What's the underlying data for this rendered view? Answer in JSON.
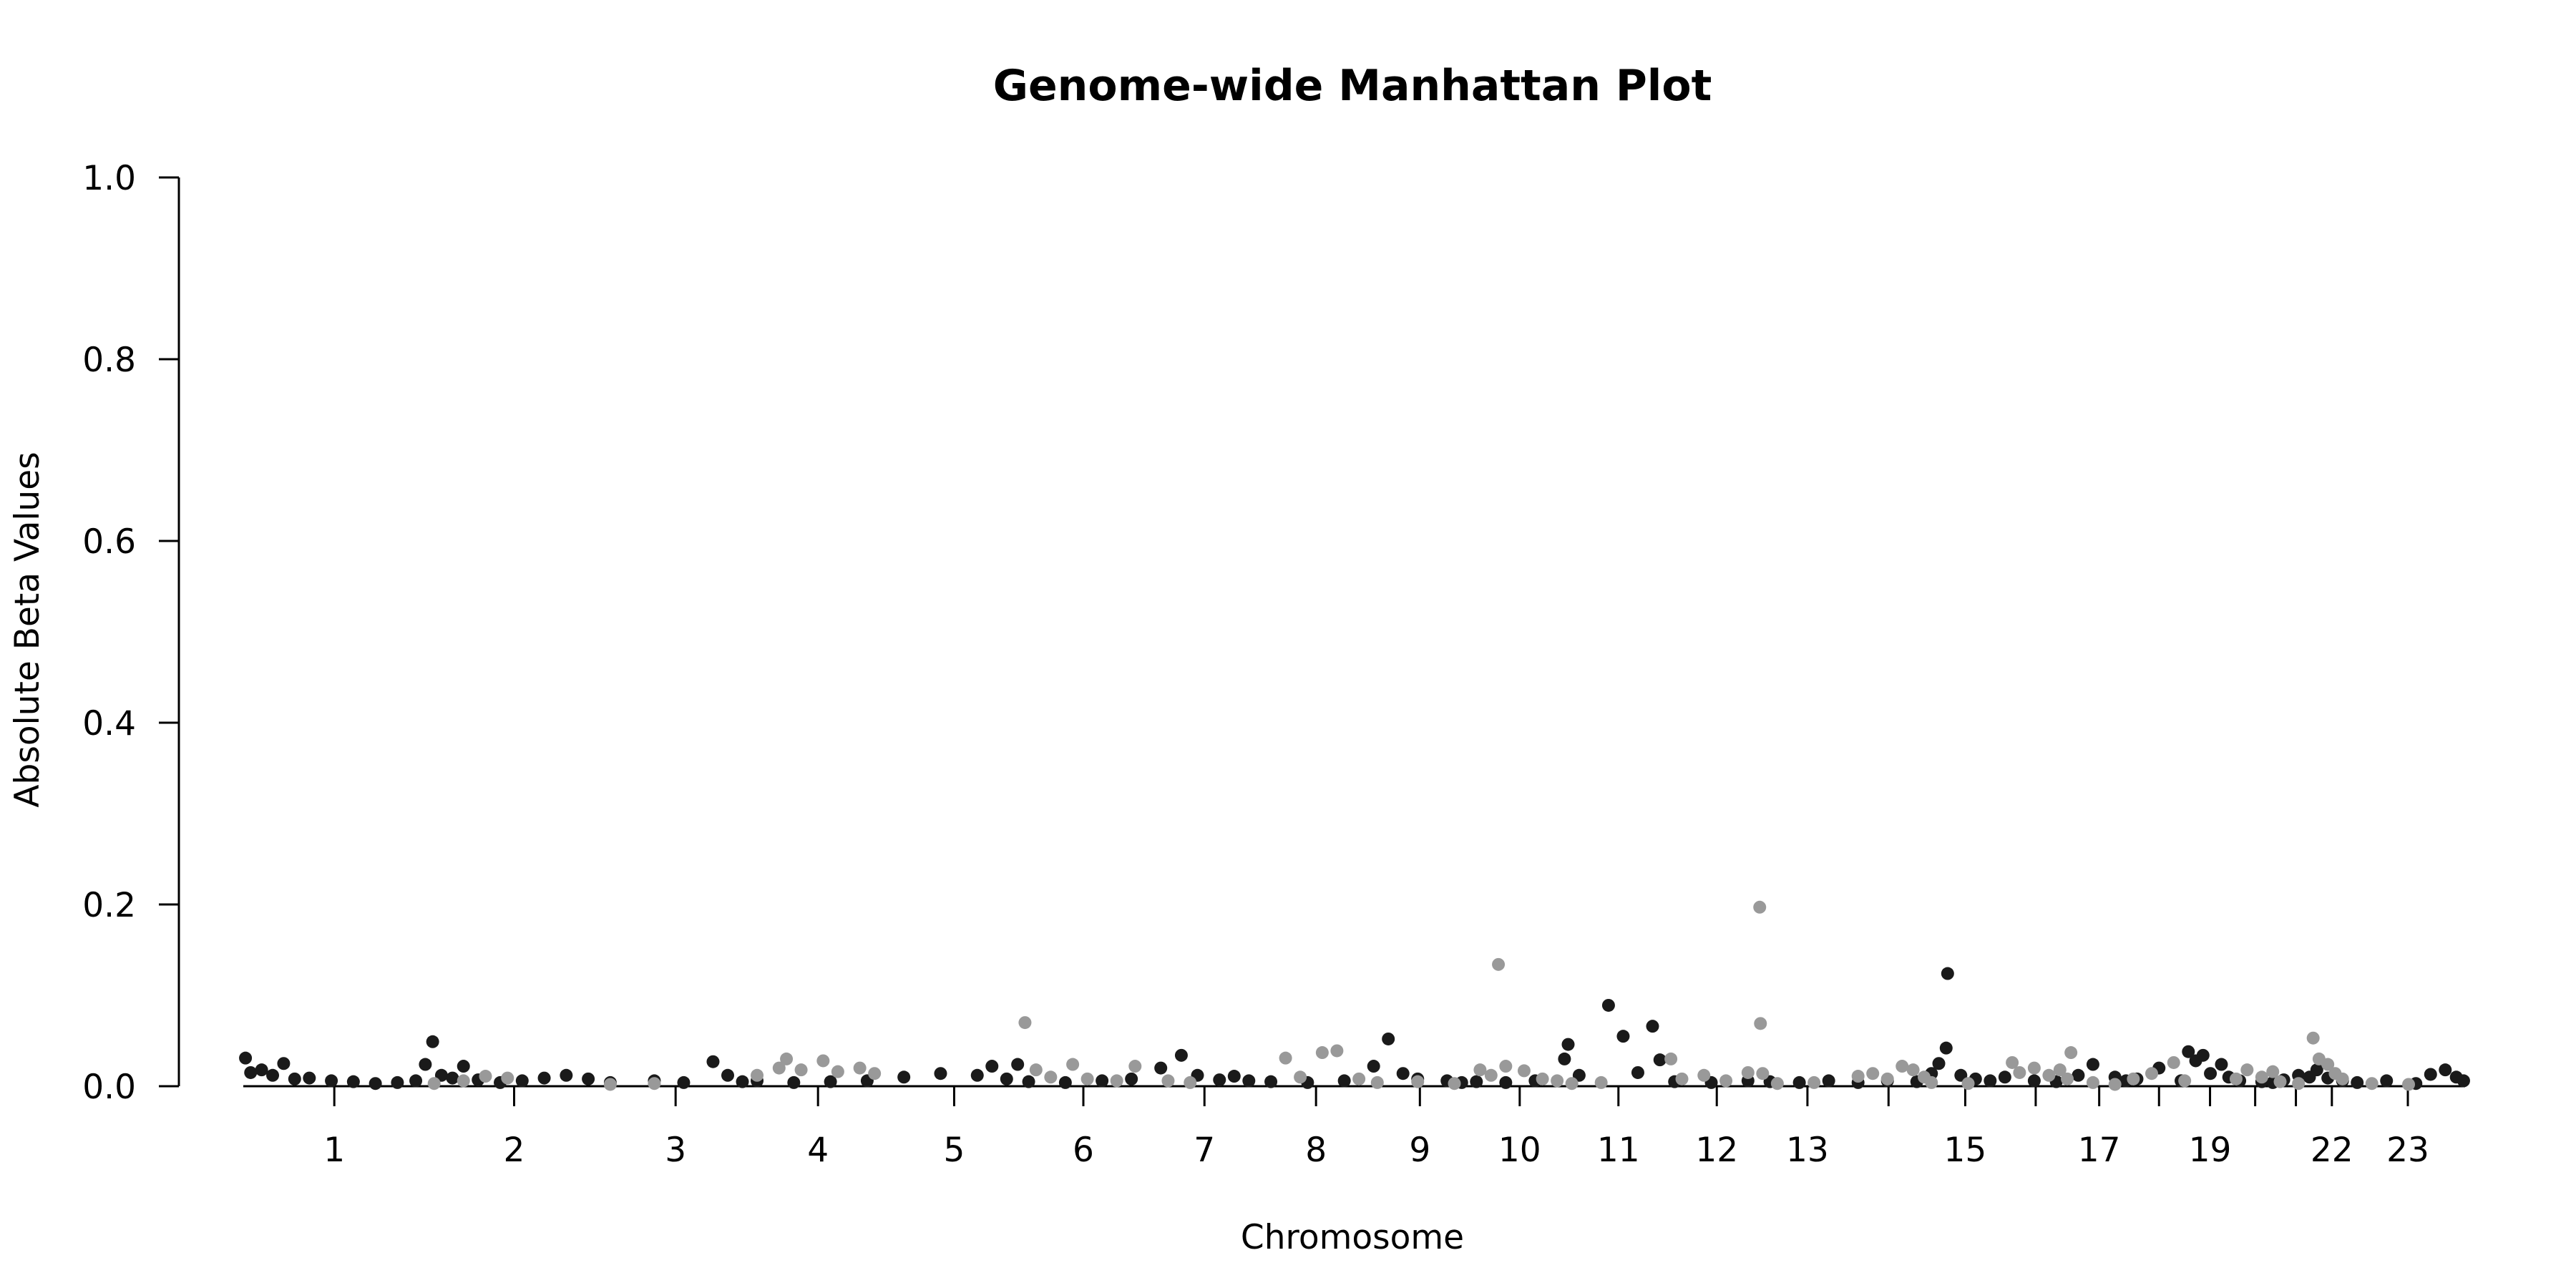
{
  "chart_data": {
    "type": "scatter",
    "title": "Genome-wide Manhattan Plot",
    "xlabel": "Chromosome",
    "ylabel": "Absolute Beta Values",
    "ylim": [
      0,
      1.0
    ],
    "yticks": [
      "0.0",
      "0.2",
      "0.4",
      "0.6",
      "0.8",
      "1.0"
    ],
    "grid": false,
    "legend": "none",
    "colors": {
      "dark": "#1a1a1a",
      "light": "#999999",
      "axis": "#000000"
    },
    "chromosomes": [
      {
        "label": "1",
        "start": 0,
        "end": 248
      },
      {
        "label": "2",
        "start": 248,
        "end": 490
      },
      {
        "label": "3",
        "start": 490,
        "end": 688
      },
      {
        "label": "4",
        "start": 688,
        "end": 878
      },
      {
        "label": "5",
        "start": 878,
        "end": 1059
      },
      {
        "label": "6",
        "start": 1059,
        "end": 1230
      },
      {
        "label": "7",
        "start": 1230,
        "end": 1389
      },
      {
        "label": "8",
        "start": 1389,
        "end": 1534
      },
      {
        "label": "9",
        "start": 1534,
        "end": 1672
      },
      {
        "label": "10",
        "start": 1672,
        "end": 1806
      },
      {
        "label": "11",
        "start": 1806,
        "end": 1941
      },
      {
        "label": "12",
        "start": 1941,
        "end": 2074
      },
      {
        "label": "13",
        "start": 2074,
        "end": 2188
      },
      {
        "label": "",
        "start": 2188,
        "end": 2295
      },
      {
        "label": "15",
        "start": 2295,
        "end": 2397
      },
      {
        "label": "",
        "start": 2397,
        "end": 2487
      },
      {
        "label": "17",
        "start": 2487,
        "end": 2570
      },
      {
        "label": "",
        "start": 2570,
        "end": 2650
      },
      {
        "label": "19",
        "start": 2650,
        "end": 2709
      },
      {
        "label": "",
        "start": 2709,
        "end": 2773
      },
      {
        "label": "",
        "start": 2773,
        "end": 2820
      },
      {
        "label": "22",
        "start": 2820,
        "end": 2871
      },
      {
        "label": "23",
        "start": 2871,
        "end": 3027
      }
    ],
    "series": [
      {
        "color": "dark",
        "points": [
          [
            3,
            0.031
          ],
          [
            10,
            0.015
          ],
          [
            25,
            0.018
          ],
          [
            40,
            0.012
          ],
          [
            55,
            0.025
          ],
          [
            70,
            0.008
          ],
          [
            90,
            0.009
          ],
          [
            120,
            0.006
          ],
          [
            150,
            0.005
          ],
          [
            180,
            0.003
          ],
          [
            210,
            0.004
          ],
          [
            235,
            0.006
          ],
          [
            248,
            0.024
          ],
          [
            258,
            0.049
          ],
          [
            270,
            0.012
          ],
          [
            285,
            0.009
          ],
          [
            300,
            0.022
          ],
          [
            320,
            0.007
          ],
          [
            350,
            0.004
          ],
          [
            380,
            0.006
          ],
          [
            410,
            0.009
          ],
          [
            440,
            0.012
          ],
          [
            470,
            0.008
          ],
          [
            500,
            0.004
          ],
          [
            560,
            0.006
          ],
          [
            600,
            0.004
          ],
          [
            640,
            0.027
          ],
          [
            660,
            0.012
          ],
          [
            680,
            0.005
          ],
          [
            700,
            0.006
          ],
          [
            750,
            0.004
          ],
          [
            800,
            0.005
          ],
          [
            850,
            0.006
          ],
          [
            900,
            0.01
          ],
          [
            950,
            0.014
          ],
          [
            1000,
            0.012
          ],
          [
            1020,
            0.022
          ],
          [
            1040,
            0.008
          ],
          [
            1055,
            0.024
          ],
          [
            1070,
            0.005
          ],
          [
            1120,
            0.004
          ],
          [
            1170,
            0.006
          ],
          [
            1210,
            0.008
          ],
          [
            1250,
            0.02
          ],
          [
            1278,
            0.034
          ],
          [
            1300,
            0.012
          ],
          [
            1330,
            0.007
          ],
          [
            1350,
            0.011
          ],
          [
            1370,
            0.006
          ],
          [
            1400,
            0.005
          ],
          [
            1450,
            0.004
          ],
          [
            1500,
            0.006
          ],
          [
            1540,
            0.022
          ],
          [
            1560,
            0.052
          ],
          [
            1580,
            0.014
          ],
          [
            1600,
            0.008
          ],
          [
            1640,
            0.006
          ],
          [
            1660,
            0.004
          ],
          [
            1680,
            0.005
          ],
          [
            1720,
            0.004
          ],
          [
            1760,
            0.006
          ],
          [
            1800,
            0.03
          ],
          [
            1805,
            0.046
          ],
          [
            1820,
            0.012
          ],
          [
            1860,
            0.089
          ],
          [
            1880,
            0.055
          ],
          [
            1900,
            0.015
          ],
          [
            1920,
            0.066
          ],
          [
            1930,
            0.029
          ],
          [
            1950,
            0.005
          ],
          [
            2000,
            0.004
          ],
          [
            2050,
            0.006
          ],
          [
            2080,
            0.005
          ],
          [
            2120,
            0.004
          ],
          [
            2160,
            0.006
          ],
          [
            2200,
            0.004
          ],
          [
            2240,
            0.006
          ],
          [
            2280,
            0.005
          ],
          [
            2300,
            0.014
          ],
          [
            2310,
            0.025
          ],
          [
            2320,
            0.042
          ],
          [
            2322,
            0.124
          ],
          [
            2340,
            0.012
          ],
          [
            2360,
            0.008
          ],
          [
            2380,
            0.006
          ],
          [
            2400,
            0.01
          ],
          [
            2440,
            0.006
          ],
          [
            2470,
            0.005
          ],
          [
            2500,
            0.012
          ],
          [
            2520,
            0.024
          ],
          [
            2550,
            0.01
          ],
          [
            2565,
            0.006
          ],
          [
            2580,
            0.008
          ],
          [
            2610,
            0.02
          ],
          [
            2640,
            0.006
          ],
          [
            2650,
            0.038
          ],
          [
            2660,
            0.028
          ],
          [
            2670,
            0.034
          ],
          [
            2680,
            0.014
          ],
          [
            2695,
            0.024
          ],
          [
            2705,
            0.01
          ],
          [
            2720,
            0.006
          ],
          [
            2750,
            0.005
          ],
          [
            2765,
            0.004
          ],
          [
            2780,
            0.007
          ],
          [
            2800,
            0.012
          ],
          [
            2815,
            0.01
          ],
          [
            2825,
            0.018
          ],
          [
            2840,
            0.009
          ],
          [
            2860,
            0.006
          ],
          [
            2880,
            0.004
          ],
          [
            2920,
            0.006
          ],
          [
            2960,
            0.003
          ],
          [
            2980,
            0.013
          ],
          [
            3000,
            0.018
          ],
          [
            3015,
            0.01
          ],
          [
            3025,
            0.006
          ]
        ]
      },
      {
        "color": "light",
        "points": [
          [
            260,
            0.003
          ],
          [
            300,
            0.006
          ],
          [
            330,
            0.011
          ],
          [
            360,
            0.009
          ],
          [
            500,
            0.002
          ],
          [
            560,
            0.003
          ],
          [
            700,
            0.012
          ],
          [
            730,
            0.02
          ],
          [
            740,
            0.03
          ],
          [
            760,
            0.018
          ],
          [
            790,
            0.028
          ],
          [
            810,
            0.016
          ],
          [
            840,
            0.02
          ],
          [
            860,
            0.014
          ],
          [
            1065,
            0.07
          ],
          [
            1080,
            0.018
          ],
          [
            1100,
            0.01
          ],
          [
            1130,
            0.024
          ],
          [
            1150,
            0.008
          ],
          [
            1190,
            0.006
          ],
          [
            1215,
            0.022
          ],
          [
            1260,
            0.006
          ],
          [
            1290,
            0.004
          ],
          [
            1420,
            0.031
          ],
          [
            1440,
            0.01
          ],
          [
            1470,
            0.037
          ],
          [
            1490,
            0.039
          ],
          [
            1520,
            0.008
          ],
          [
            1545,
            0.004
          ],
          [
            1600,
            0.005
          ],
          [
            1650,
            0.003
          ],
          [
            1685,
            0.018
          ],
          [
            1700,
            0.012
          ],
          [
            1710,
            0.134
          ],
          [
            1720,
            0.022
          ],
          [
            1745,
            0.017
          ],
          [
            1770,
            0.008
          ],
          [
            1790,
            0.006
          ],
          [
            1810,
            0.003
          ],
          [
            1850,
            0.004
          ],
          [
            1945,
            0.03
          ],
          [
            1960,
            0.008
          ],
          [
            1990,
            0.012
          ],
          [
            2020,
            0.006
          ],
          [
            2050,
            0.015
          ],
          [
            2066,
            0.197
          ],
          [
            2067,
            0.069
          ],
          [
            2070,
            0.014
          ],
          [
            2090,
            0.003
          ],
          [
            2140,
            0.004
          ],
          [
            2200,
            0.011
          ],
          [
            2220,
            0.014
          ],
          [
            2240,
            0.008
          ],
          [
            2260,
            0.022
          ],
          [
            2275,
            0.018
          ],
          [
            2290,
            0.01
          ],
          [
            2300,
            0.004
          ],
          [
            2350,
            0.003
          ],
          [
            2410,
            0.026
          ],
          [
            2420,
            0.015
          ],
          [
            2440,
            0.02
          ],
          [
            2460,
            0.012
          ],
          [
            2475,
            0.018
          ],
          [
            2485,
            0.008
          ],
          [
            2490,
            0.037
          ],
          [
            2520,
            0.004
          ],
          [
            2550,
            0.002
          ],
          [
            2575,
            0.008
          ],
          [
            2600,
            0.014
          ],
          [
            2630,
            0.026
          ],
          [
            2645,
            0.006
          ],
          [
            2715,
            0.008
          ],
          [
            2730,
            0.018
          ],
          [
            2750,
            0.01
          ],
          [
            2765,
            0.016
          ],
          [
            2775,
            0.005
          ],
          [
            2800,
            0.003
          ],
          [
            2820,
            0.053
          ],
          [
            2828,
            0.03
          ],
          [
            2840,
            0.024
          ],
          [
            2850,
            0.014
          ],
          [
            2860,
            0.008
          ],
          [
            2900,
            0.003
          ],
          [
            2950,
            0.002
          ]
        ]
      }
    ]
  }
}
